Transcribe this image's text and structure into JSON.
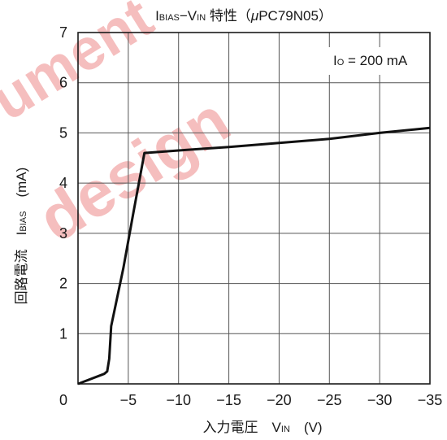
{
  "chart_data": {
    "type": "line",
    "title": {
      "main_i": "I",
      "main_sub1": "BIAS",
      "main_mid": "−V",
      "main_sub2": "IN",
      "main_tail": " 特性（",
      "mu": "μ",
      "device": "PC79N05）"
    },
    "annotation": {
      "prefix": "I",
      "sub": "O",
      "rest": " = 200 mA"
    },
    "xlabel": {
      "prefix": "入力電圧　V",
      "sub": "IN",
      "unit": "　(V)"
    },
    "ylabel": {
      "prefix": "回路電流　I",
      "sub": "BIAS",
      "unit": "　(mA)"
    },
    "x_ticks": [
      "0",
      "−5",
      "−10",
      "−15",
      "−20",
      "−25",
      "−30",
      "−35"
    ],
    "y_ticks": [
      "1",
      "2",
      "3",
      "4",
      "5",
      "6",
      "7"
    ],
    "xlim": [
      0,
      -35
    ],
    "ylim": [
      0,
      7
    ],
    "grid": true,
    "series": [
      {
        "x": [
          0,
          -2.6,
          -2.9,
          -3.1,
          -3.3,
          -4.5,
          -5.5,
          -6.6,
          -10,
          -15,
          -20,
          -25,
          -30,
          -35
        ],
        "y": [
          0,
          0.2,
          0.25,
          0.5,
          1.15,
          2.3,
          3.4,
          4.6,
          4.65,
          4.72,
          4.8,
          4.88,
          5.0,
          5.1
        ]
      }
    ]
  },
  "watermark": {
    "line1": "ument",
    "line2": "design",
    "color": "#f2a9a9"
  }
}
